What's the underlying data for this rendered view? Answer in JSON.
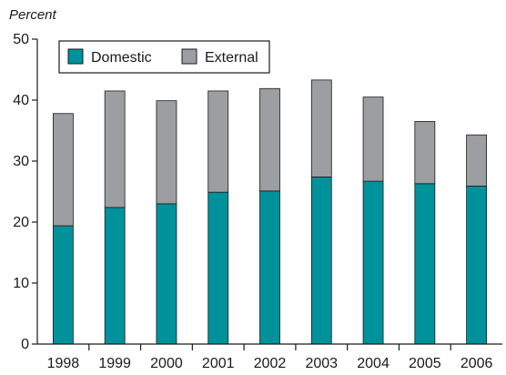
{
  "chart_data": {
    "type": "bar",
    "stacked": true,
    "ylabel": "Percent",
    "ylim": [
      0,
      50
    ],
    "yticks": [
      0,
      10,
      20,
      30,
      40,
      50
    ],
    "categories": [
      "1998",
      "1999",
      "2000",
      "2001",
      "2002",
      "2003",
      "2004",
      "2005",
      "2006"
    ],
    "series": [
      {
        "name": "Domestic",
        "color": "#00929b",
        "values": [
          19.4,
          22.4,
          23.0,
          24.9,
          25.1,
          27.4,
          26.7,
          26.3,
          25.9
        ]
      },
      {
        "name": "External",
        "color": "#9c9ea1",
        "values": [
          18.4,
          19.1,
          16.9,
          16.6,
          16.8,
          15.9,
          13.8,
          10.2,
          8.4
        ]
      }
    ],
    "legend_position": "top-left",
    "grid": false
  }
}
